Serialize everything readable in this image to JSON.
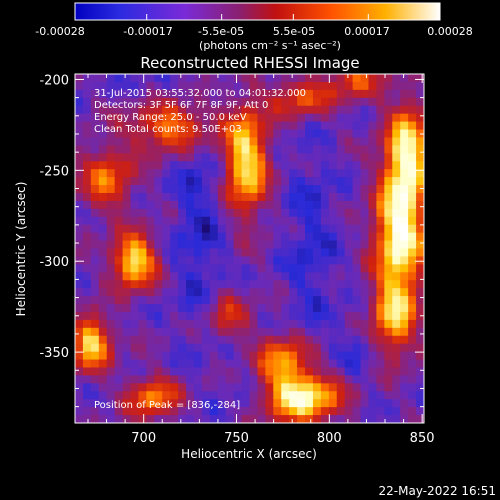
{
  "chart_data": {
    "type": "heatmap",
    "title": "Reconstructed RHESSI Image",
    "xlabel": "Heliocentric X (arcsec)",
    "ylabel": "Heliocentric Y (arcsec)",
    "xlim": [
      663,
      851
    ],
    "ylim": [
      -389,
      -197
    ],
    "x_ticks": [
      700,
      750,
      800,
      850
    ],
    "y_ticks": [
      -200,
      -250,
      -300,
      -350
    ],
    "info_lines": [
      "31-Jul-2015 03:55:32.000 to 04:01:32.000",
      "Detectors: 3F 5F 6F 7F 8F 9F, Att 0",
      "Energy Range: 25.0 - 50.0 keV",
      "Clean     Total counts: 9.50E+03"
    ],
    "peak_text": "Position of Peak = [836,-284]",
    "colorbar": {
      "ticks": [
        "-0.00028",
        "-0.00017",
        "-5.5e-05",
        "5.5e-05",
        "0.00017",
        "0.00028"
      ],
      "range": [
        -0.00028,
        0.00028
      ],
      "units_label": "(photons cm⁻² s⁻¹ asec⁻²)"
    },
    "colormap": [
      "#000000",
      "#1a0a6e",
      "#2a2ad8",
      "#6a2ab8",
      "#9a2060",
      "#d02010",
      "#ff6a00",
      "#ffc000",
      "#ffffc0",
      "#ffffff"
    ],
    "sources": [
      {
        "x": 838,
        "y": -284,
        "amp": 1.0,
        "sx": 9,
        "sy": 22
      },
      {
        "x": 842,
        "y": -240,
        "amp": 0.85,
        "sx": 8,
        "sy": 18
      },
      {
        "x": 835,
        "y": -330,
        "amp": 0.7,
        "sx": 8,
        "sy": 15
      },
      {
        "x": 785,
        "y": -375,
        "amp": 0.95,
        "sx": 14,
        "sy": 9
      },
      {
        "x": 775,
        "y": -355,
        "amp": 0.6,
        "sx": 10,
        "sy": 10
      },
      {
        "x": 695,
        "y": -300,
        "amp": 0.85,
        "sx": 8,
        "sy": 10
      },
      {
        "x": 672,
        "y": -345,
        "amp": 0.8,
        "sx": 7,
        "sy": 10
      },
      {
        "x": 705,
        "y": -375,
        "amp": 0.55,
        "sx": 10,
        "sy": 8
      },
      {
        "x": 755,
        "y": -245,
        "amp": 0.85,
        "sx": 8,
        "sy": 20
      },
      {
        "x": 715,
        "y": -225,
        "amp": 0.6,
        "sx": 16,
        "sy": 10
      },
      {
        "x": 680,
        "y": -255,
        "amp": 0.5,
        "sx": 10,
        "sy": 12
      },
      {
        "x": 785,
        "y": -210,
        "amp": 0.45,
        "sx": 12,
        "sy": 8
      },
      {
        "x": 815,
        "y": -200,
        "amp": 0.4,
        "sx": 10,
        "sy": 8
      },
      {
        "x": 745,
        "y": -330,
        "amp": 0.35,
        "sx": 8,
        "sy": 10
      }
    ],
    "troughs": [
      {
        "x": 730,
        "y": -280,
        "amp": 0.9,
        "sx": 10,
        "sy": 45
      },
      {
        "x": 790,
        "y": -290,
        "amp": 0.8,
        "sx": 10,
        "sy": 40
      },
      {
        "x": 760,
        "y": -370,
        "amp": 0.5,
        "sx": 12,
        "sy": 10
      },
      {
        "x": 705,
        "y": -210,
        "amp": 0.5,
        "sx": 12,
        "sy": 10
      },
      {
        "x": 815,
        "y": -350,
        "amp": 0.5,
        "sx": 8,
        "sy": 14
      }
    ]
  },
  "timestamp": "22-May-2022 16:51"
}
